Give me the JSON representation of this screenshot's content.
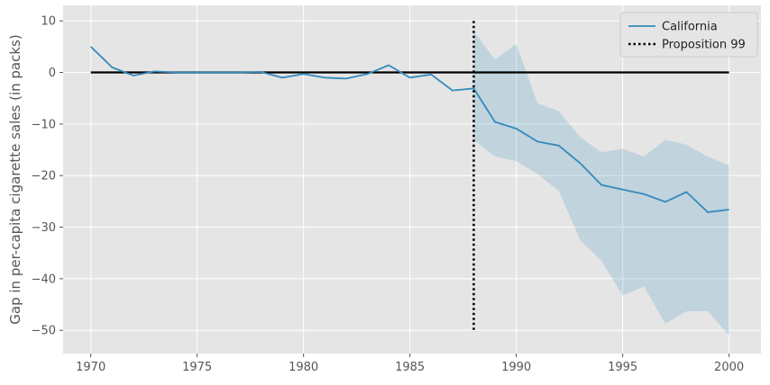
{
  "chart_data": {
    "type": "line",
    "title": "",
    "xlabel": "",
    "ylabel": "Gap in per-capita cigarette sales (in packs)",
    "xlim": [
      1968.7,
      2001.5
    ],
    "ylim": [
      -54.5,
      13.0
    ],
    "xticks": [
      1970,
      1975,
      1980,
      1985,
      1990,
      1995,
      2000
    ],
    "yticks": [
      10,
      0,
      -10,
      -20,
      -30,
      -40,
      -50
    ],
    "ytick_labels": [
      "10",
      "0",
      "−10",
      "−20",
      "−30",
      "−40",
      "−50"
    ],
    "grid": true,
    "legend_position": "top-right",
    "series": [
      {
        "name": "California",
        "color": "#348abd",
        "x": [
          1970,
          1971,
          1972,
          1973,
          1974,
          1975,
          1976,
          1977,
          1978,
          1979,
          1980,
          1981,
          1982,
          1983,
          1984,
          1985,
          1986,
          1987,
          1988,
          1989,
          1990,
          1991,
          1992,
          1993,
          1994,
          1995,
          1996,
          1997,
          1998,
          1999,
          2000
        ],
        "y": [
          5.0,
          1.0,
          -0.6,
          0.2,
          0.0,
          0.0,
          0.0,
          0.0,
          0.1,
          -1.0,
          -0.3,
          -1.0,
          -1.2,
          -0.3,
          1.4,
          -1.0,
          -0.4,
          -3.5,
          -3.1,
          -9.6,
          -10.9,
          -13.4,
          -14.2,
          -17.6,
          -21.8,
          -22.7,
          -23.6,
          -25.1,
          -23.2,
          -27.1,
          -26.6
        ]
      }
    ],
    "confidence_band": {
      "color": "#348abd",
      "x": [
        1988,
        1989,
        1990,
        1991,
        1992,
        1993,
        1994,
        1995,
        1996,
        1997,
        1998,
        1999,
        2000
      ],
      "upper": [
        8.0,
        2.5,
        5.5,
        -6.0,
        -7.5,
        -12.5,
        -15.5,
        -14.8,
        -16.3,
        -13.1,
        -14.0,
        -16.3,
        -18.0
      ],
      "lower": [
        -13.0,
        -16.3,
        -17.2,
        -19.7,
        -23.0,
        -32.5,
        -36.5,
        -43.2,
        -41.5,
        -48.7,
        -46.3,
        -46.3,
        -51.0
      ]
    },
    "reference_hline": {
      "y": 0,
      "x_from": 1970,
      "x_to": 2000,
      "color": "#000000"
    },
    "reference_vline": {
      "name": "Proposition 99",
      "x": 1988,
      "y_from": 10,
      "y_to": -50,
      "color": "#000000"
    }
  }
}
